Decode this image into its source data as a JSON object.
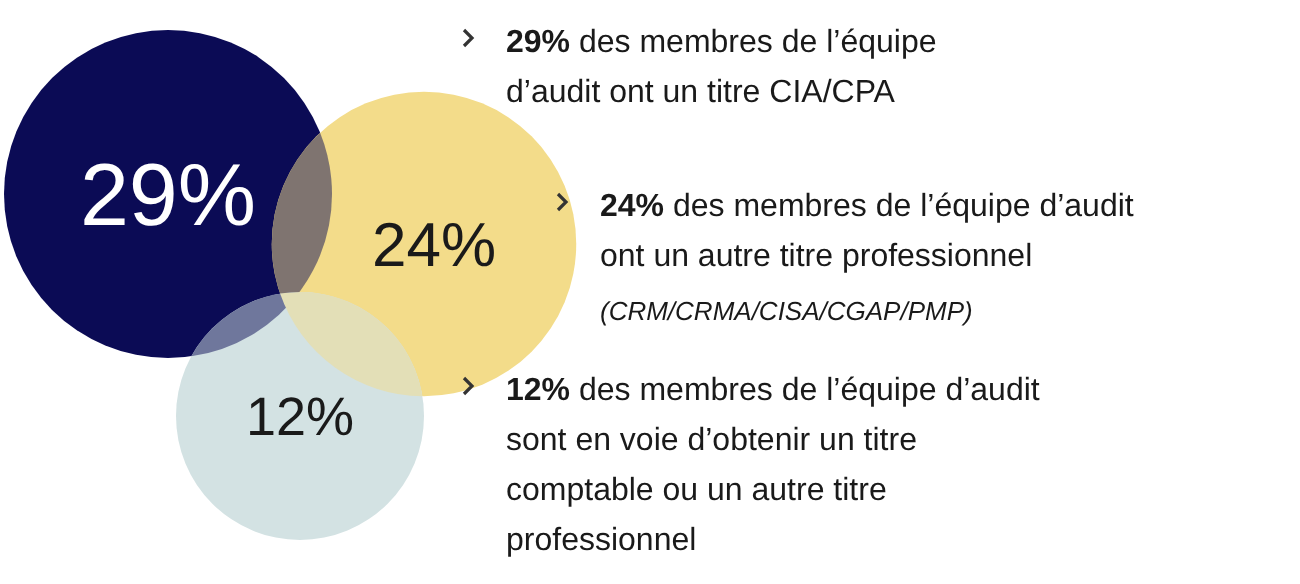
{
  "chart_data": {
    "type": "other",
    "categories": [
      null,
      null,
      null
    ],
    "values": [
      29,
      24,
      12
    ],
    "colors": [
      "#0b0b55",
      "#f3dc8a",
      "#d3e2e3"
    ],
    "value_labels": [
      "29%",
      "24%",
      "12%"
    ],
    "annotations": [
      "29% des membres de l’équipe\nd’audit ont un titre CIA/CPA",
      "24% des membres de l’équipe d’audit\nont un autre titre professionnel",
      "(CRM/CRMA/CISA/CGAP/PMP)",
      "12% des membres de l’équipe d’audit\nsont en voie d’obtenir un titre\ncomptable ou un autre titre\nprofessionnel"
    ]
  }
}
